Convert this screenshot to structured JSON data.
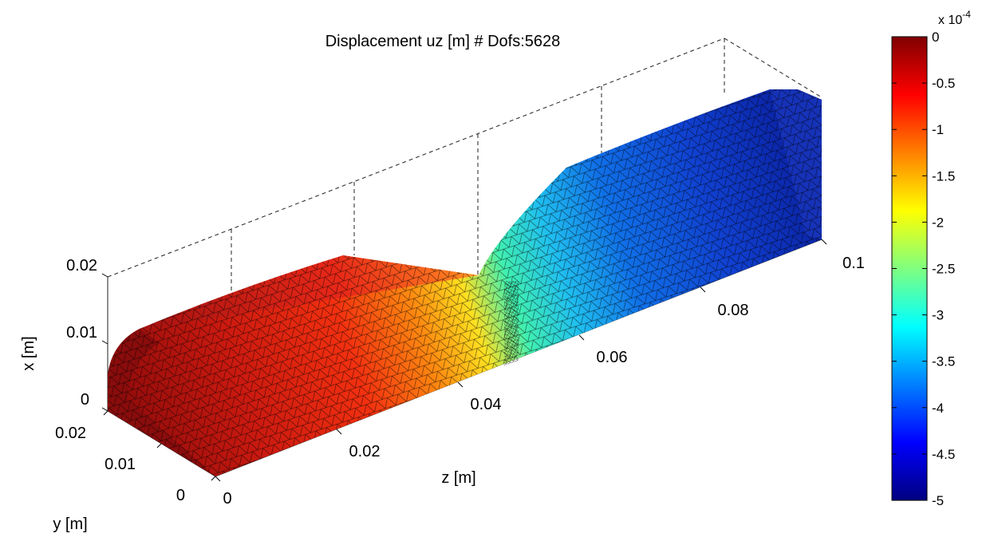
{
  "chart_data": {
    "type": "3d-surface-mesh",
    "title": "Displacement uz [m] # Dofs:5628",
    "xlabel": "x [m]",
    "ylabel": "y [m]",
    "zlabel": "z [m]",
    "x_ticks": [
      "0",
      "0.01",
      "0.02"
    ],
    "y_ticks": [
      "0",
      "0.01",
      "0.02"
    ],
    "z_ticks": [
      "0",
      "0.02",
      "0.04",
      "0.06",
      "0.08",
      "0.1"
    ],
    "xlim": [
      0,
      0.02
    ],
    "ylim": [
      0,
      0.02
    ],
    "zlim": [
      0,
      0.1
    ],
    "colorbar": {
      "colormap": "jet",
      "exponent_label": "x 10",
      "exponent_power": "-4",
      "clim": [
        -5,
        0
      ],
      "ticks": [
        "0",
        "-0.5",
        "-1",
        "-1.5",
        "-2",
        "-2.5",
        "-3",
        "-3.5",
        "-4",
        "-4.5",
        "-5"
      ]
    },
    "grid": true
  }
}
